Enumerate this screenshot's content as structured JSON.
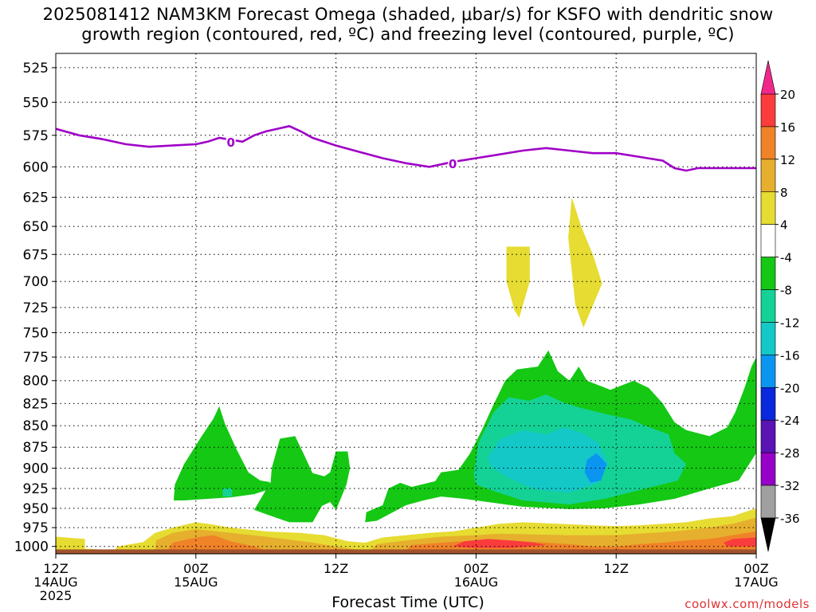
{
  "title": {
    "line1": "2025081412 NAM3KM Forecast Omega (shaded, μbar/s) for KSFO with dendritic snow",
    "line2": "growth region (contoured, red, ºC) and freezing level (contoured, purple, ºC)"
  },
  "credit": "coolwx.com/models",
  "colors": {
    "freezing_line": "#a000c8",
    "ground": "#a0522d",
    "palette_note": "omega color scale"
  },
  "chart_data": {
    "type": "heatmap",
    "xlabel": "Forecast Time (UTC)",
    "ylabel": "",
    "y_axis": {
      "scale": "log-pressure",
      "inverted": true,
      "ticks": [
        525,
        550,
        575,
        600,
        625,
        650,
        675,
        700,
        725,
        750,
        775,
        800,
        825,
        850,
        875,
        900,
        925,
        950,
        975,
        1000
      ],
      "range_hPa": [
        515,
        1010
      ]
    },
    "x_axis": {
      "range_hours": [
        0,
        60
      ],
      "ticks": [
        {
          "hour": 0,
          "l1": "12Z",
          "l2": "14AUG",
          "l3": "2025"
        },
        {
          "hour": 12,
          "l1": "00Z",
          "l2": "15AUG",
          "l3": ""
        },
        {
          "hour": 24,
          "l1": "12Z",
          "l2": "",
          "l3": ""
        },
        {
          "hour": 36,
          "l1": "00Z",
          "l2": "16AUG",
          "l3": ""
        },
        {
          "hour": 48,
          "l1": "12Z",
          "l2": "",
          "l3": ""
        },
        {
          "hour": 60,
          "l1": "00Z",
          "l2": "17AUG",
          "l3": ""
        }
      ]
    },
    "grid": true,
    "colorbar": {
      "levels": [
        -36,
        -32,
        -28,
        -24,
        -20,
        -16,
        -12,
        -8,
        -4,
        4,
        8,
        12,
        16,
        20
      ],
      "colors": [
        "#000000",
        "#a0a0a0",
        "#9600c8",
        "#5a14b4",
        "#0a28dc",
        "#0a96f0",
        "#14c8c8",
        "#14d296",
        "#14c814",
        "#ffffff",
        "#e6dc32",
        "#e6af2d",
        "#f08228",
        "#fa3c3c",
        "#f0288c"
      ]
    },
    "freezing_level": {
      "label": "0",
      "x": [
        0,
        2,
        4,
        6,
        8,
        10,
        12,
        13,
        14,
        16,
        17,
        18,
        19,
        20,
        21,
        22,
        24,
        26,
        28,
        30,
        32,
        34,
        36,
        38,
        40,
        42,
        44,
        46,
        48,
        50,
        52,
        53,
        54,
        55,
        56,
        58,
        60
      ],
      "p": [
        570,
        575,
        578,
        582,
        584,
        583,
        582,
        580,
        577,
        580,
        575,
        572,
        570,
        568,
        572,
        577,
        583,
        588,
        593,
        597,
        600,
        596,
        593,
        590,
        587,
        585,
        587,
        589,
        589,
        592,
        595,
        601,
        603,
        601,
        601,
        601,
        601
      ]
    },
    "regions": [
      {
        "value": -6,
        "points": [
          [
            10.1,
            940
          ],
          [
            10.2,
            920
          ],
          [
            11,
            895
          ],
          [
            12.5,
            862
          ],
          [
            13.5,
            842
          ],
          [
            14,
            828
          ],
          [
            14.5,
            848
          ],
          [
            15.5,
            878
          ],
          [
            16.5,
            905
          ],
          [
            17.5,
            915
          ],
          [
            18.3,
            917
          ],
          [
            18.5,
            925
          ],
          [
            17,
            932
          ],
          [
            15,
            936
          ],
          [
            13,
            938
          ],
          [
            11,
            940
          ]
        ]
      },
      {
        "value": -10,
        "points": [
          [
            14.3,
            925
          ],
          [
            15.1,
            925
          ],
          [
            15.1,
            935
          ],
          [
            14.3,
            935
          ]
        ]
      },
      {
        "value": -6,
        "points": [
          [
            18.4,
            917
          ],
          [
            18.5,
            900
          ],
          [
            19.2,
            865
          ],
          [
            20.5,
            862
          ],
          [
            21.2,
            882
          ],
          [
            22,
            906
          ],
          [
            23,
            910
          ],
          [
            23.5,
            905
          ],
          [
            24,
            880
          ],
          [
            25,
            880
          ],
          [
            25.2,
            900
          ],
          [
            24.9,
            920
          ],
          [
            24.4,
            938
          ],
          [
            24,
            952
          ],
          [
            23.5,
            942
          ],
          [
            22.8,
            947
          ],
          [
            22,
            968
          ],
          [
            20,
            968
          ],
          [
            18.5,
            960
          ],
          [
            17,
            952
          ]
        ]
      },
      {
        "value": -6,
        "points": [
          [
            26.5,
            968
          ],
          [
            26.6,
            955
          ],
          [
            28,
            946
          ],
          [
            28.5,
            925
          ],
          [
            29.5,
            918
          ],
          [
            30.5,
            923
          ],
          [
            32.5,
            916
          ],
          [
            33,
            905
          ],
          [
            34.5,
            902
          ],
          [
            35.5,
            882
          ],
          [
            36.5,
            855
          ],
          [
            37.5,
            826
          ],
          [
            38.5,
            800
          ],
          [
            39.5,
            788
          ],
          [
            41.3,
            785
          ],
          [
            42.2,
            768
          ],
          [
            43,
            790
          ],
          [
            44,
            800
          ],
          [
            44.8,
            785
          ],
          [
            45.5,
            800
          ],
          [
            47.5,
            810
          ],
          [
            49.5,
            800
          ],
          [
            50.8,
            808
          ],
          [
            52,
            825
          ],
          [
            53,
            846
          ],
          [
            54,
            855
          ],
          [
            56,
            862
          ],
          [
            57.5,
            852
          ],
          [
            58.2,
            835
          ],
          [
            59,
            808
          ],
          [
            59.6,
            785
          ],
          [
            60,
            775
          ],
          [
            60,
            882
          ],
          [
            58.5,
            915
          ],
          [
            56,
            925
          ],
          [
            53,
            938
          ],
          [
            50,
            945
          ],
          [
            47,
            950
          ],
          [
            44,
            951
          ],
          [
            40,
            948
          ],
          [
            37,
            942
          ],
          [
            35,
            938
          ],
          [
            33,
            935
          ],
          [
            31.5,
            940
          ],
          [
            30,
            946
          ],
          [
            27.5,
            966
          ]
        ]
      },
      {
        "value": -10,
        "points": [
          [
            35.8,
            908
          ],
          [
            36.2,
            870
          ],
          [
            37.5,
            835
          ],
          [
            38.8,
            818
          ],
          [
            40.5,
            822
          ],
          [
            42,
            815
          ],
          [
            43.5,
            824
          ],
          [
            45,
            830
          ],
          [
            47.5,
            838
          ],
          [
            49.3,
            843
          ],
          [
            50.5,
            850
          ],
          [
            52.5,
            860
          ],
          [
            53,
            882
          ],
          [
            54,
            895
          ],
          [
            53.3,
            915
          ],
          [
            50,
            927
          ],
          [
            47,
            938
          ],
          [
            44,
            945
          ],
          [
            40,
            940
          ],
          [
            37.5,
            928
          ],
          [
            36,
            920
          ]
        ]
      },
      {
        "value": -14,
        "points": [
          [
            37,
            888
          ],
          [
            38,
            866
          ],
          [
            40,
            855
          ],
          [
            42,
            860
          ],
          [
            43.5,
            852
          ],
          [
            45,
            858
          ],
          [
            46.5,
            870
          ],
          [
            47.3,
            895
          ],
          [
            46.5,
            918
          ],
          [
            44,
            930
          ],
          [
            41,
            926
          ],
          [
            38.5,
            910
          ],
          [
            37.3,
            898
          ]
        ]
      },
      {
        "value": -18,
        "points": [
          [
            45.5,
            890
          ],
          [
            46.3,
            882
          ],
          [
            47.2,
            895
          ],
          [
            46.7,
            915
          ],
          [
            45.8,
            918
          ],
          [
            45.3,
            905
          ]
        ]
      },
      {
        "value": 6,
        "points": [
          [
            38.6,
            668
          ],
          [
            40.6,
            668
          ],
          [
            40.6,
            700
          ],
          [
            39.7,
            735
          ],
          [
            39.3,
            728
          ],
          [
            38.6,
            700
          ]
        ]
      },
      {
        "value": 6,
        "points": [
          [
            44.2,
            625
          ],
          [
            45,
            650
          ],
          [
            46,
            675
          ],
          [
            46.8,
            702
          ],
          [
            45.2,
            745
          ],
          [
            44.5,
            722
          ],
          [
            44.2,
            690
          ],
          [
            43.9,
            660
          ]
        ]
      },
      {
        "value": 6,
        "points": [
          [
            0,
            1008
          ],
          [
            0,
            987
          ],
          [
            2.5,
            990
          ],
          [
            2.5,
            1003
          ],
          [
            5,
            1005
          ],
          [
            5.3,
            1000
          ],
          [
            7.5,
            994
          ],
          [
            8.5,
            982
          ],
          [
            10,
            975
          ],
          [
            12,
            968
          ],
          [
            13,
            970
          ],
          [
            15,
            975
          ],
          [
            18,
            980
          ],
          [
            21,
            982
          ],
          [
            23,
            985
          ],
          [
            25,
            993
          ],
          [
            26.5,
            995
          ],
          [
            28,
            988
          ],
          [
            30,
            985
          ],
          [
            32,
            982
          ],
          [
            34,
            980
          ],
          [
            36,
            975
          ],
          [
            38,
            970
          ],
          [
            40,
            968
          ],
          [
            43,
            970
          ],
          [
            46,
            972
          ],
          [
            48,
            973
          ],
          [
            50,
            972
          ],
          [
            52,
            970
          ],
          [
            54,
            968
          ],
          [
            56,
            963
          ],
          [
            58,
            960
          ],
          [
            59,
            955
          ],
          [
            60,
            950
          ],
          [
            60,
            1008
          ]
        ]
      },
      {
        "value": 10,
        "points": [
          [
            8.5,
            1005
          ],
          [
            8.6,
            992
          ],
          [
            10,
            982
          ],
          [
            12,
            977
          ],
          [
            15,
            982
          ],
          [
            18,
            987
          ],
          [
            22,
            995
          ],
          [
            24,
            1000
          ],
          [
            26,
            1005
          ]
        ]
      },
      {
        "value": 14,
        "points": [
          [
            9.6,
            1005
          ],
          [
            10,
            995
          ],
          [
            12,
            988
          ],
          [
            13.5,
            985
          ],
          [
            15,
            993
          ],
          [
            17,
            1000
          ],
          [
            18,
            1005
          ]
        ]
      },
      {
        "value": 10,
        "points": [
          [
            27,
            1005
          ],
          [
            27.5,
            997
          ],
          [
            30,
            992
          ],
          [
            33,
            987
          ],
          [
            36,
            985
          ],
          [
            38,
            983
          ],
          [
            41,
            984
          ],
          [
            44,
            985
          ],
          [
            48,
            985
          ],
          [
            50,
            983
          ],
          [
            53,
            980
          ],
          [
            56,
            975
          ],
          [
            58,
            970
          ],
          [
            60,
            962
          ],
          [
            60,
            1005
          ]
        ]
      },
      {
        "value": 14,
        "points": [
          [
            30,
            1005
          ],
          [
            30.5,
            998
          ],
          [
            33,
            995
          ],
          [
            36,
            992
          ],
          [
            39,
            992
          ],
          [
            42,
            995
          ],
          [
            44,
            997
          ],
          [
            46,
            1000
          ],
          [
            48,
            1000
          ],
          [
            50,
            997
          ],
          [
            52,
            995
          ],
          [
            54,
            992
          ],
          [
            56,
            990
          ],
          [
            58,
            985
          ],
          [
            60,
            980
          ],
          [
            60,
            1005
          ]
        ]
      },
      {
        "value": 18,
        "points": [
          [
            34,
            1000
          ],
          [
            35,
            993
          ],
          [
            37,
            990
          ],
          [
            39,
            992
          ],
          [
            41,
            995
          ],
          [
            42,
            998
          ],
          [
            39,
            1002
          ],
          [
            36,
            1002
          ]
        ]
      },
      {
        "value": 18,
        "points": [
          [
            57.2,
            995
          ],
          [
            58,
            990
          ],
          [
            60,
            988
          ],
          [
            60,
            1000
          ],
          [
            57.5,
            1000
          ]
        ]
      }
    ],
    "ground": {
      "top_hPa": 1004
    }
  }
}
